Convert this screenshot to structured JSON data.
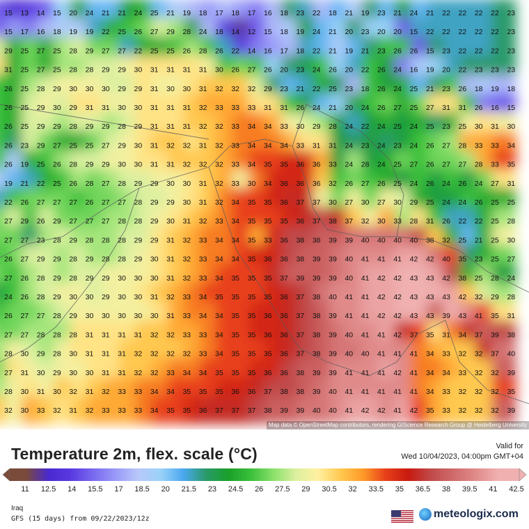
{
  "map": {
    "attribution": "Map data © OpenStreetMap contributors, rendering GIScience Research Group @ Heidelberg University",
    "rows": [
      "15 13 14 15 20 24 21 21 24 25 21 19 18 17 18 17 16 18 23 22 18 21 19 23 21 24 21 22 22 22 22 23",
      "15 17 16 18 19 19 22 25 26 27 29 28 24 18 14 12 15 18 19 24 21 20 23 20 20 15 22 22 22 22 22 23",
      "29 25 27 25 28 29 27 27 22 25 25 26 28 26 22 14 16 17 18 22 21 19 21 23 26 26 15 23 22 22 22 23",
      "31 25 27 25 28 28 29 29 30 31 31 31 31 30 26 27 26 20 23 24 26 20 22 26 24 16 19 20 22 23 23 23",
      "26 25 28 29 30 30 30 29 29 31 30 30 31 32 32 32 29 23 21 22 25 23 18 26 24 25 21 23 26 18 19 18",
      "26 25 29 30 29 31 31 30 30 31 31 31 32 33 33 33 31 31 26 24 21 20 24 26 27 25 27 31 31 26 16 15",
      "26 25 29 29 28 29 29 28 29 31 31 31 32 32 33 34 34 33 30 29 28 24 22 24 25 24 25 23 25 30 31 30",
      "26 23 29 27 25 25 27 29 30 31 32 32 31 32 33 34 34 34 33 31 31 24 23 24 23 24 26 27 28 33 33 34",
      "26 19 25 26 28 29 29 30 30 31 31 32 32 32 33 34 35 35 36 36 33 24 28 24 25 27 26 27 27 28 33 35",
      "19 21 22 25 26 28 27 28 29 29 30 30 31 32 33 30 34 36 36 36 32 26 27 26 25 24 26 24 26 24 27 31",
      "22 26 27 27 27 26 27 27 28 29 29 30 31 32 34 35 35 36 37 37 30 27 30 27 30 29 25 24 24 26 25 25",
      "27 29 26 29 27 27 27 28 28 29 30 31 32 33 34 35 35 35 36 37 38 37 32 30 33 28 31 26 22 22 25 28",
      "27 27 23 28 29 28 28 28 29 29 31 32 33 34 34 35 33 36 38 38 39 39 40 40 40 40 38 32 25 21 25 30",
      "26 27 29 29 28 29 28 28 29 30 31 32 33 34 34 35 36 36 38 39 39 40 41 41 41 42 42 40 35 23 25 27",
      "27 26 28 29 28 29 29 30 30 30 31 32 33 34 35 35 35 37 39 39 39 40 41 42 42 43 43 42 38 25 28 24",
      "24 26 28 29 30 30 29 30 30 31 32 33 34 35 35 35 35 36 37 38 40 41 41 42 42 43 43 43 42 32 29 28",
      "26 27 27 28 29 30 30 30 30 30 31 33 34 34 35 35 36 36 37 38 39 41 41 42 42 43 43 39 43 41 35 31",
      "27 27 28 28 28 31 31 31 31 32 32 33 33 34 35 35 36 36 37 38 39 40 41 41 42 37 35 31 34 37 39 38",
      "28 30 29 28 30 31 31 31 32 32 32 32 33 34 35 35 35 36 37 38 39 40 40 41 41 41 34 33 32 32 37 40",
      "27 31 30 29 30 30 31 31 32 32 33 34 34 35 35 35 36 36 38 39 39 41 41 41 42 41 34 34 33 32 32 39",
      "28 30 31 30 32 31 32 33 33 34 34 35 35 35 36 36 37 38 38 39 40 41 41 41 41 41 34 33 32 32 32 35",
      "32 30 33 32 31 32 33 33 33 34 35 35 36 37 37 37 38 39 39 40 40 41 42 42 41 42 35 33 32 32 32 39"
    ]
  },
  "panel": {
    "title": "Temperature 2m, flex. scale (°C)",
    "valid_label": "Valid for",
    "valid_time": "Wed 10/04/2023, 04:00pm GMT+04",
    "scale_ticks": [
      "11",
      "12.5",
      "14",
      "15.5",
      "17",
      "18.5",
      "20",
      "21.5",
      "23",
      "24.5",
      "26",
      "27.5",
      "29",
      "30.5",
      "32",
      "33.5",
      "35",
      "36.5",
      "38",
      "39.5",
      "41",
      "42.5"
    ],
    "region": "Iraq",
    "model": "GFS (15 days) from  09/22/2023/12z",
    "brand": "meteologix.com",
    "flag_icon": "us-flag-icon",
    "brand_icon": "globe-icon"
  }
}
